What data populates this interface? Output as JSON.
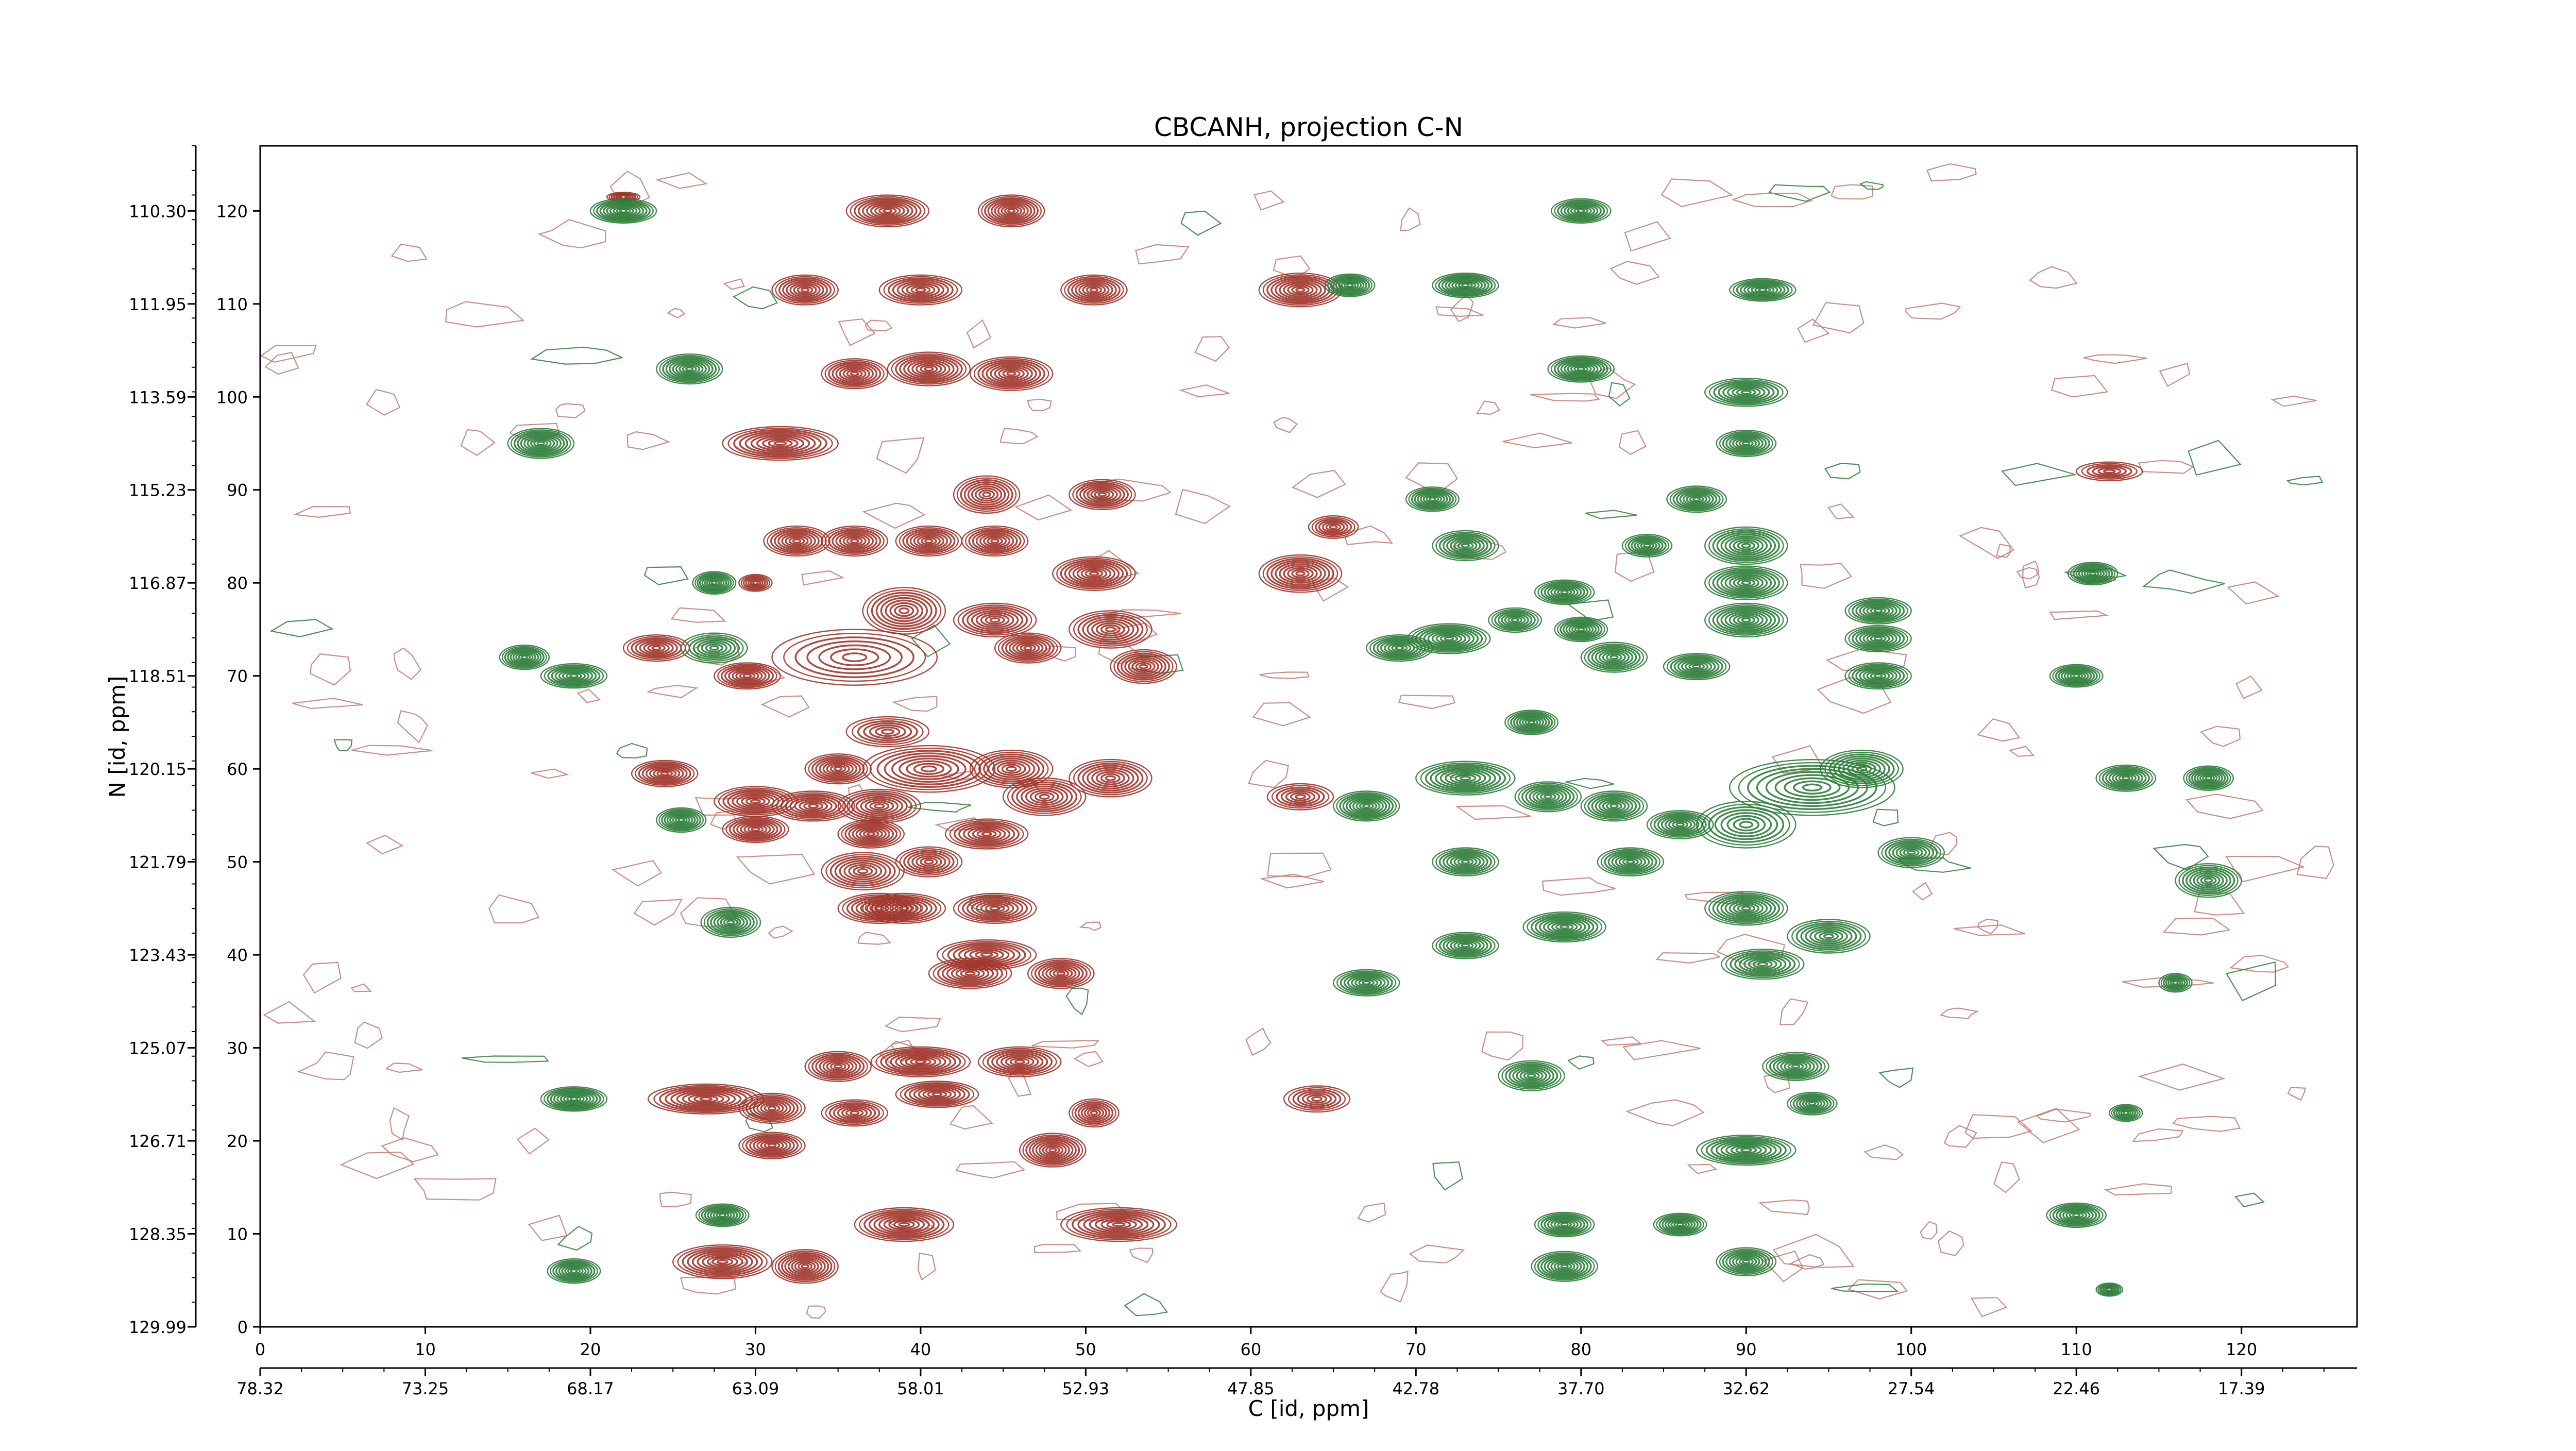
{
  "chart_data": {
    "type": "contour",
    "title": "CBCANH, projection C-N",
    "xlabel": "C [id, ppm]",
    "ylabel": "N [id, ppm]",
    "x_index_ticks": [
      0,
      10,
      20,
      30,
      40,
      50,
      60,
      70,
      80,
      90,
      100,
      110,
      120
    ],
    "x_ppm_ticks": [
      "78.32",
      "73.25",
      "68.17",
      "63.09",
      "58.01",
      "52.93",
      "47.85",
      "42.78",
      "37.70",
      "32.62",
      "27.54",
      "22.46",
      "17.39"
    ],
    "y_index_ticks": [
      0,
      10,
      20,
      30,
      40,
      50,
      60,
      70,
      80,
      90,
      100,
      110,
      120
    ],
    "y_ppm_ticks": [
      "129.99",
      "128.35",
      "126.71",
      "125.07",
      "123.43",
      "121.79",
      "120.15",
      "118.51",
      "116.87",
      "115.23",
      "113.59",
      "111.95",
      "110.30"
    ],
    "xlim": [
      0,
      127
    ],
    "ylim": [
      0,
      127
    ],
    "grid": false,
    "colors": {
      "positive": "#a0342a",
      "negative": "#2e7d3a",
      "noise": "#c07a72"
    },
    "series": [
      {
        "sign": "positive",
        "peaks": [
          [
            38,
            120,
            2.5,
            1.7,
            1.0
          ],
          [
            45.5,
            120,
            2,
            1.7,
            1.0
          ],
          [
            22,
            121.5,
            1,
            0.5,
            0.5
          ],
          [
            33,
            111.5,
            2,
            1.6,
            0.8
          ],
          [
            40,
            111.5,
            2.5,
            1.6,
            0.9
          ],
          [
            50.5,
            111.5,
            2,
            1.6,
            0.9
          ],
          [
            63,
            111.5,
            2.5,
            1.8,
            1.0
          ],
          [
            36,
            102.5,
            2,
            1.6,
            0.9
          ],
          [
            40.5,
            103,
            2.5,
            1.8,
            1.0
          ],
          [
            45.5,
            102.5,
            2.5,
            1.8,
            1.0
          ],
          [
            31.5,
            95,
            3.5,
            1.8,
            1.0
          ],
          [
            44,
            89.5,
            2,
            2,
            0.8
          ],
          [
            51,
            89.5,
            2,
            1.6,
            0.8
          ],
          [
            32.5,
            84.5,
            2,
            1.6,
            0.8
          ],
          [
            36,
            84.5,
            2,
            1.6,
            0.8
          ],
          [
            40.5,
            84.5,
            2,
            1.6,
            0.9
          ],
          [
            44.5,
            84.5,
            2,
            1.6,
            0.8
          ],
          [
            50.5,
            81,
            2.5,
            1.8,
            1.0
          ],
          [
            63,
            81,
            2.5,
            2,
            1.0
          ],
          [
            30,
            80,
            1,
            0.9,
            0.6
          ],
          [
            39,
            77,
            2.5,
            2.5,
            0.8
          ],
          [
            44.5,
            76,
            2.5,
            1.8,
            0.8
          ],
          [
            51.5,
            75,
            2.5,
            2,
            0.9
          ],
          [
            46.5,
            73,
            2,
            1.6,
            0.8
          ],
          [
            24,
            73,
            2,
            1.4,
            0.7
          ],
          [
            29.5,
            70,
            2,
            1.4,
            0.8
          ],
          [
            36,
            72,
            5,
            3,
            0.6
          ],
          [
            53.5,
            71,
            2,
            1.8,
            0.9
          ],
          [
            38,
            64,
            2.5,
            1.6,
            0.6
          ],
          [
            40.5,
            60,
            4,
            2.5,
            0.8
          ],
          [
            45.5,
            60,
            2.5,
            2,
            0.8
          ],
          [
            51.5,
            59,
            2.5,
            2,
            0.9
          ],
          [
            24.5,
            59.5,
            2,
            1.4,
            0.8
          ],
          [
            35,
            60,
            2,
            1.6,
            0.8
          ],
          [
            30,
            56.5,
            2.5,
            1.6,
            0.9
          ],
          [
            33.5,
            56,
            2.5,
            1.6,
            0.9
          ],
          [
            37.5,
            56,
            2.5,
            1.8,
            0.8
          ],
          [
            47.5,
            57,
            2.5,
            2,
            0.8
          ],
          [
            30,
            53.5,
            2,
            1.4,
            0.8
          ],
          [
            37,
            53,
            2,
            1.5,
            0.8
          ],
          [
            44,
            53,
            2.5,
            1.6,
            0.8
          ],
          [
            36.5,
            49,
            2.5,
            2,
            0.8
          ],
          [
            40.5,
            50,
            2,
            1.6,
            0.7
          ],
          [
            39,
            45,
            2.5,
            1.6,
            0.9
          ],
          [
            44.5,
            45,
            2.5,
            1.6,
            0.8
          ],
          [
            37.5,
            45,
            2.5,
            1.6,
            0.8
          ],
          [
            44,
            40,
            3,
            1.6,
            0.8
          ],
          [
            48.5,
            38,
            2,
            1.6,
            0.8
          ],
          [
            43,
            38,
            2.5,
            1.6,
            0.8
          ],
          [
            35,
            28,
            2,
            1.6,
            0.8
          ],
          [
            40,
            28.5,
            3,
            1.6,
            1.0
          ],
          [
            46,
            28.5,
            2.5,
            1.6,
            0.9
          ],
          [
            41,
            25,
            2.5,
            1.4,
            0.8
          ],
          [
            27,
            24.5,
            3.5,
            1.6,
            1.0
          ],
          [
            31,
            23.5,
            2,
            1.6,
            0.8
          ],
          [
            36,
            23,
            2,
            1.4,
            0.7
          ],
          [
            48,
            19,
            2,
            1.8,
            1.0
          ],
          [
            31,
            19.5,
            2,
            1.4,
            0.8
          ],
          [
            50.5,
            23,
            1.5,
            1.5,
            0.7
          ],
          [
            39,
            11,
            3,
            1.8,
            1.0
          ],
          [
            52,
            11,
            3.5,
            1.8,
            1.0
          ],
          [
            28,
            7,
            3,
            1.8,
            1.0
          ],
          [
            33,
            6.5,
            2,
            1.8,
            1.0
          ],
          [
            64,
            24.5,
            2,
            1.4,
            0.6
          ],
          [
            63,
            57,
            2,
            1.4,
            0.6
          ],
          [
            65,
            86,
            1.5,
            1.2,
            0.6
          ],
          [
            112,
            92,
            2,
            1,
            0.4
          ]
        ]
      },
      {
        "sign": "negative",
        "peaks": [
          [
            22,
            120,
            2,
            1.3,
            1.0
          ],
          [
            26,
            103,
            2,
            1.6,
            1.0
          ],
          [
            17,
            95,
            2,
            1.6,
            1.0
          ],
          [
            16,
            72,
            1.5,
            1.3,
            0.8
          ],
          [
            19,
            70,
            2,
            1.3,
            0.9
          ],
          [
            27.5,
            80,
            1.3,
            1.2,
            0.9
          ],
          [
            27.5,
            73,
            2,
            1.6,
            0.7
          ],
          [
            25.5,
            54.5,
            1.5,
            1.3,
            0.8
          ],
          [
            28.5,
            43.5,
            1.8,
            1.6,
            0.9
          ],
          [
            19,
            24.5,
            2,
            1.3,
            1.0
          ],
          [
            19,
            6,
            1.6,
            1.3,
            0.9
          ],
          [
            28,
            12,
            1.6,
            1.2,
            0.8
          ],
          [
            66,
            112,
            1.5,
            1.2,
            0.8
          ],
          [
            73,
            112,
            2,
            1.3,
            1.0
          ],
          [
            80,
            103,
            2,
            1.4,
            1.0
          ],
          [
            90,
            100.5,
            2.5,
            1.5,
            0.9
          ],
          [
            91,
            111.5,
            2,
            1.2,
            0.8
          ],
          [
            90,
            95,
            1.8,
            1.4,
            0.9
          ],
          [
            80,
            120,
            1.8,
            1.3,
            0.9
          ],
          [
            71,
            89,
            1.6,
            1.3,
            0.8
          ],
          [
            87,
            89,
            1.8,
            1.4,
            0.9
          ],
          [
            73,
            84,
            2,
            1.6,
            0.9
          ],
          [
            84,
            84,
            1.5,
            1.2,
            0.7
          ],
          [
            90,
            84,
            2.5,
            2,
            1.0
          ],
          [
            90,
            80,
            2.5,
            1.8,
            1.0
          ],
          [
            90,
            76,
            2.5,
            1.8,
            1.0
          ],
          [
            79,
            79,
            1.8,
            1.3,
            0.8
          ],
          [
            76,
            76,
            1.6,
            1.3,
            0.7
          ],
          [
            80,
            75,
            1.6,
            1.3,
            0.8
          ],
          [
            98,
            77,
            2,
            1.4,
            0.9
          ],
          [
            98,
            74,
            2,
            1.4,
            0.9
          ],
          [
            98,
            70,
            2,
            1.4,
            0.8
          ],
          [
            72,
            74,
            2.5,
            1.6,
            1.0
          ],
          [
            69,
            73,
            2,
            1.4,
            0.9
          ],
          [
            82,
            72,
            2,
            1.6,
            0.9
          ],
          [
            87,
            71,
            2,
            1.4,
            0.9
          ],
          [
            111,
            81,
            1.5,
            1.2,
            0.8
          ],
          [
            110,
            70,
            1.6,
            1.2,
            0.9
          ],
          [
            77,
            65,
            1.6,
            1.3,
            0.9
          ],
          [
            73,
            59,
            3,
            1.8,
            1.0
          ],
          [
            78,
            57,
            2,
            1.6,
            0.9
          ],
          [
            67,
            56,
            2,
            1.6,
            1.0
          ],
          [
            82,
            56,
            2,
            1.6,
            0.9
          ],
          [
            86,
            54,
            2,
            1.5,
            0.9
          ],
          [
            94,
            58,
            5,
            3,
            0.8
          ],
          [
            90,
            54,
            3,
            2.5,
            0.7
          ],
          [
            97,
            60,
            2.5,
            2,
            0.9
          ],
          [
            100,
            51,
            2,
            1.6,
            0.8
          ],
          [
            73,
            50,
            2,
            1.5,
            0.9
          ],
          [
            83,
            50,
            2,
            1.5,
            0.9
          ],
          [
            90,
            45,
            2.5,
            1.8,
            1.0
          ],
          [
            95,
            42,
            2.5,
            1.8,
            0.9
          ],
          [
            79,
            43,
            2.5,
            1.6,
            1.0
          ],
          [
            73,
            41,
            2,
            1.4,
            0.9
          ],
          [
            91,
            39,
            2.5,
            1.6,
            0.9
          ],
          [
            67,
            37,
            2,
            1.4,
            0.9
          ],
          [
            113,
            59,
            1.8,
            1.4,
            0.9
          ],
          [
            118,
            59,
            1.5,
            1.3,
            0.8
          ],
          [
            118,
            48,
            2,
            1.8,
            0.9
          ],
          [
            116,
            37,
            1,
            1,
            0.6
          ],
          [
            77,
            27,
            2,
            1.6,
            0.9
          ],
          [
            93,
            28,
            2,
            1.5,
            0.9
          ],
          [
            94,
            24,
            1.5,
            1.2,
            0.7
          ],
          [
            90,
            19,
            3,
            1.6,
            1.0
          ],
          [
            79,
            11,
            1.8,
            1.3,
            0.9
          ],
          [
            86,
            11,
            1.6,
            1.2,
            0.8
          ],
          [
            79,
            6.5,
            2,
            1.6,
            1.0
          ],
          [
            90,
            7,
            1.8,
            1.5,
            0.9
          ],
          [
            110,
            12,
            1.8,
            1.3,
            0.9
          ],
          [
            113,
            23,
            1,
            0.9,
            0.5
          ],
          [
            112,
            4,
            0.8,
            0.7,
            0.5
          ]
        ]
      }
    ]
  }
}
